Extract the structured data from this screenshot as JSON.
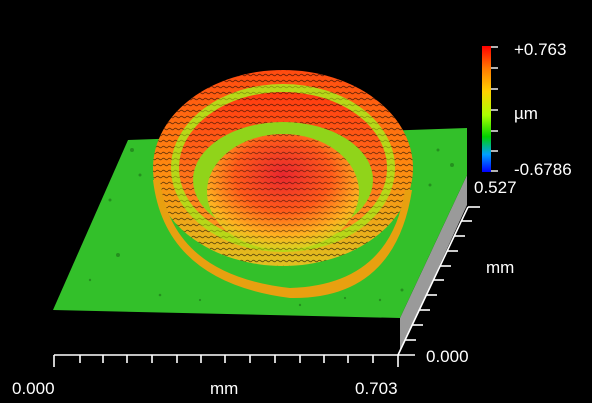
{
  "colors": {
    "background": "#000000",
    "surface_base": "#33c02a",
    "ring_high": "#ff5a14",
    "peak": "#e02b2b",
    "contour_line": "#000000",
    "axis": "#ffffff",
    "side_wall": "#9a9a9a"
  },
  "colorbar": {
    "max_label": "+0.763",
    "unit_label": "µm",
    "min_label": "-0.6786",
    "stops": [
      "#ff0000",
      "#ff7a00",
      "#ffd000",
      "#aaff00",
      "#00d000",
      "#00a0ff",
      "#0000ff"
    ]
  },
  "x_axis": {
    "start_label": "0.000",
    "unit_label": "mm",
    "end_label": "0.703"
  },
  "y_axis": {
    "top_label": "0.527",
    "unit_label": "mm",
    "bottom_label": "0.000"
  }
}
